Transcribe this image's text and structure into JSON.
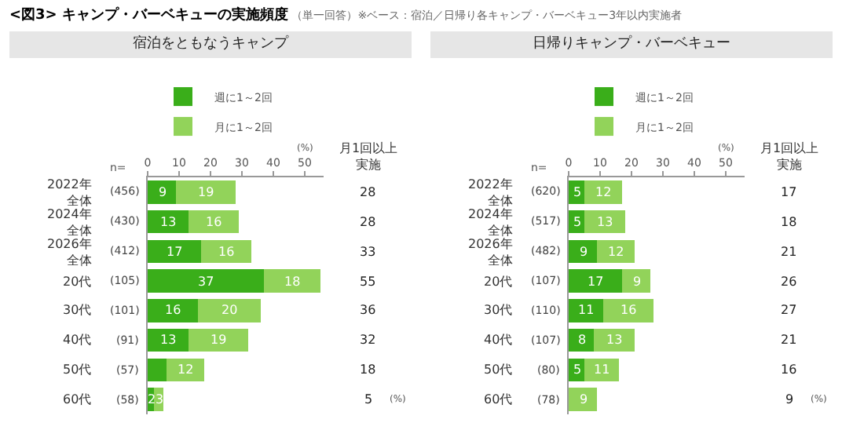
{
  "chart_data": [
    {
      "type": "other",
      "title": "<図3> キャンプ・バーベキューの実施頻度",
      "subtitle": "（単一回答）※ベース：宿泊／日帰り各キャンプ・バーベキュー3年以内実施者"
    },
    {
      "type": "bar",
      "orientation": "horizontal",
      "stacked": true,
      "title": "宿泊をともなうキャンプ",
      "xlabel": "(%)",
      "legend": "top",
      "grid": false,
      "categories": [
        "2022年全体 (456)",
        "2024年全体 (430)",
        "2026年全体 (412)",
        "20代 (105)",
        "30代 (101)",
        "40代 (91)",
        "50代 (57)",
        "60代 (58)"
      ],
      "series": [
        {
          "name": "週に1～2回",
          "color": "#3aae1a",
          "values": [
            9,
            13,
            17,
            37,
            16,
            13,
            6,
            2
          ],
          "value_labels": [
            "9",
            "13",
            "17",
            "37",
            "16",
            "13",
            null,
            "2"
          ]
        },
        {
          "name": "月に1～2回",
          "color": "#92d35a",
          "values": [
            19,
            16,
            16,
            18,
            20,
            19,
            12,
            3
          ],
          "value_labels": [
            "19",
            "16",
            "16",
            "18",
            "20",
            "19",
            "12",
            "3"
          ]
        }
      ],
      "xlim": [
        0,
        56
      ],
      "xticks": [
        0,
        10,
        20,
        30,
        40,
        50
      ],
      "annotations": [
        "n=",
        "月1回以上実施",
        "28",
        "28",
        "33",
        "55",
        "36",
        "32",
        "18",
        "5",
        "(%)"
      ]
    },
    {
      "type": "bar",
      "orientation": "horizontal",
      "stacked": true,
      "title": "日帰りキャンプ・バーベキュー",
      "xlabel": "(%)",
      "legend": "top",
      "grid": false,
      "categories": [
        "2022年全体 (620)",
        "2024年全体 (517)",
        "2026年全体 (482)",
        "20代 (107)",
        "30代 (110)",
        "40代 (107)",
        "50代 (80)",
        "60代 (78)"
      ],
      "series": [
        {
          "name": "週に1～2回",
          "color": "#3aae1a",
          "values": [
            5,
            5,
            9,
            17,
            11,
            8,
            5,
            0
          ],
          "value_labels": [
            "5",
            "5",
            "9",
            "17",
            "11",
            "8",
            "5",
            null
          ]
        },
        {
          "name": "月に1～2回",
          "color": "#92d35a",
          "values": [
            12,
            13,
            12,
            9,
            16,
            13,
            11,
            9
          ],
          "value_labels": [
            "12",
            "13",
            "12",
            "9",
            "16",
            "13",
            "11",
            "9"
          ]
        }
      ],
      "xlim": [
        0,
        56
      ],
      "xticks": [
        0,
        10,
        20,
        30,
        40,
        50
      ],
      "annotations": [
        "n=",
        "月1回以上実施",
        "17",
        "18",
        "21",
        "26",
        "27",
        "21",
        "16",
        "9",
        "(%)"
      ]
    }
  ]
}
